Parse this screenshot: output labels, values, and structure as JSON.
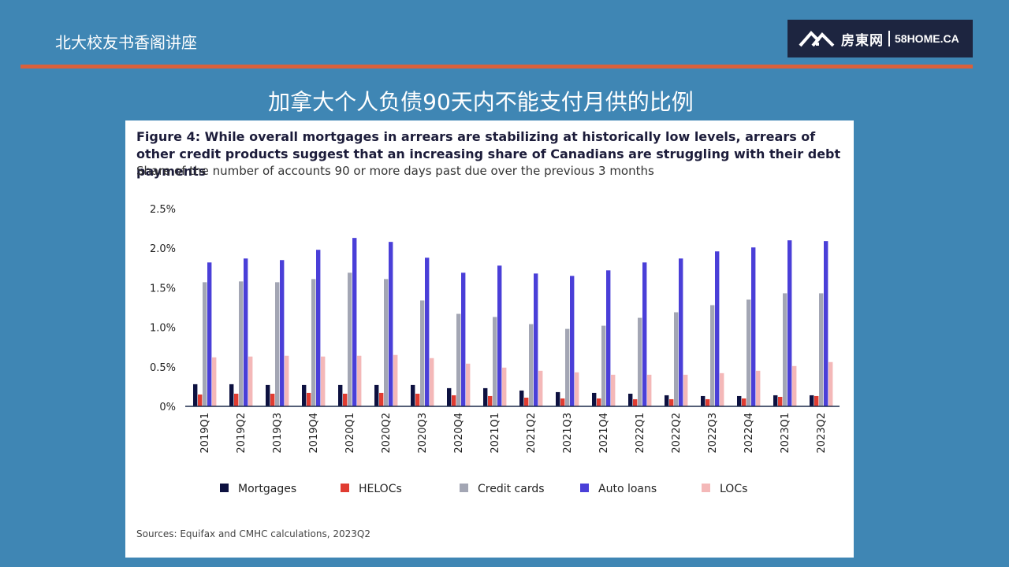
{
  "header": {
    "org_title": "北大校友书香阁讲座",
    "logo_cn": "房東网",
    "logo_en": "58HOME.CA",
    "logo_icon": "house-roof-icon"
  },
  "slide": {
    "title": "加拿大个人负债90天内不能支付月供的比例"
  },
  "colors": {
    "background": "#3f86b4",
    "accent": "#d9603b",
    "logo_bg": "#1d2540"
  },
  "chart_data": {
    "type": "bar",
    "title": "Figure 4: While overall mortgages in arrears are stabilizing at historically low levels, arrears of other credit products suggest that an increasing share of Canadians are struggling with their debt payments",
    "subtitle": "Share of the number of accounts 90 or more days past due over the previous 3 months",
    "source": "Sources: Equifax and CMHC calculations, 2023Q2",
    "ylim": [
      0,
      2.5
    ],
    "y_ticks": [
      {
        "value": 0,
        "label": "0%"
      },
      {
        "value": 0.5,
        "label": "0.5%"
      },
      {
        "value": 1.0,
        "label": "1.0%"
      },
      {
        "value": 1.5,
        "label": "1.5%"
      },
      {
        "value": 2.0,
        "label": "2.0%"
      },
      {
        "value": 2.5,
        "label": "2.5%"
      }
    ],
    "grid": false,
    "legend_position": "bottom",
    "categories": [
      "2019Q1",
      "2019Q2",
      "2019Q3",
      "2019Q4",
      "2020Q1",
      "2020Q2",
      "2020Q3",
      "2020Q4",
      "2021Q1",
      "2021Q2",
      "2021Q3",
      "2021Q4",
      "2022Q1",
      "2022Q2",
      "2022Q3",
      "2022Q4",
      "2023Q1",
      "2023Q2"
    ],
    "series": [
      {
        "name": "Mortgages",
        "color": "#0d1140",
        "values": [
          0.28,
          0.28,
          0.27,
          0.27,
          0.27,
          0.27,
          0.27,
          0.23,
          0.23,
          0.2,
          0.18,
          0.17,
          0.16,
          0.14,
          0.13,
          0.13,
          0.14,
          0.14
        ]
      },
      {
        "name": "HELOCs",
        "color": "#e03c31",
        "values": [
          0.15,
          0.16,
          0.16,
          0.17,
          0.16,
          0.17,
          0.16,
          0.14,
          0.13,
          0.11,
          0.1,
          0.1,
          0.09,
          0.09,
          0.09,
          0.1,
          0.12,
          0.13
        ]
      },
      {
        "name": "Credit cards",
        "color": "#a3a6b4",
        "values": [
          1.57,
          1.58,
          1.57,
          1.61,
          1.69,
          1.61,
          1.34,
          1.17,
          1.13,
          1.04,
          0.98,
          1.02,
          1.12,
          1.19,
          1.28,
          1.35,
          1.43,
          1.43
        ]
      },
      {
        "name": "Auto loans",
        "color": "#4a3fd8",
        "values": [
          1.82,
          1.87,
          1.85,
          1.98,
          2.13,
          2.08,
          1.88,
          1.69,
          1.78,
          1.68,
          1.65,
          1.72,
          1.82,
          1.87,
          1.96,
          2.01,
          2.1,
          2.09
        ]
      },
      {
        "name": "LOCs",
        "color": "#f4b8b8",
        "values": [
          0.62,
          0.63,
          0.64,
          0.63,
          0.64,
          0.65,
          0.61,
          0.54,
          0.49,
          0.45,
          0.43,
          0.4,
          0.4,
          0.4,
          0.42,
          0.45,
          0.51,
          0.56
        ]
      }
    ]
  }
}
